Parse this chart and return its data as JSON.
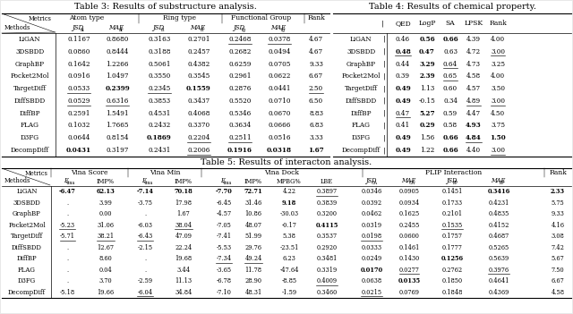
{
  "table3_title": "Table 3: Results of substructure analysis.",
  "table4_title": "Table 4: Results of chemical property.",
  "table5_title": "Table 5: Results of interacton analysis.",
  "table3_rows": [
    [
      "LiGAN",
      "0.1167",
      "0.8680",
      "0.3163",
      "0.2701",
      "0.2468",
      "0.0378",
      "4.67"
    ],
    [
      "3DSBDD",
      "0.0860",
      "0.8444",
      "0.3188",
      "0.2457",
      "0.2682",
      "0.0494",
      "4.67"
    ],
    [
      "GraphBP",
      "0.1642",
      "1.2266",
      "0.5061",
      "0.4382",
      "0.6259",
      "0.0705",
      "9.33"
    ],
    [
      "Pocket2Mol",
      "0.0916",
      "1.0497",
      "0.3550",
      "0.3545",
      "0.2961",
      "0.0622",
      "6.67"
    ],
    [
      "TargetDiff",
      "0.0533",
      "0.2399",
      "0.2345",
      "0.1559",
      "0.2876",
      "0.0441",
      "2.50"
    ],
    [
      "DiffSBDD",
      "0.0529",
      "0.6316",
      "0.3853",
      "0.3437",
      "0.5520",
      "0.0710",
      "6.50"
    ],
    [
      "DiffBP",
      "0.2591",
      "1.5491",
      "0.4531",
      "0.4068",
      "0.5346",
      "0.0670",
      "8.83"
    ],
    [
      "FLAG",
      "0.1032",
      "1.7665",
      "0.2432",
      "0.3370",
      "0.3634",
      "0.0666",
      "6.83"
    ],
    [
      "D3FG",
      "0.0644",
      "0.8154",
      "0.1869",
      "0.2204",
      "0.2511",
      "0.0516",
      "3.33"
    ],
    [
      "DecompDiff",
      "0.0431",
      "0.3197",
      "0.2431",
      "0.2006",
      "0.1916",
      "0.0318",
      "1.67"
    ]
  ],
  "table3_bold": [
    [
      false,
      false,
      false,
      false,
      false,
      false,
      false,
      false
    ],
    [
      false,
      false,
      false,
      false,
      false,
      false,
      false,
      false
    ],
    [
      false,
      false,
      false,
      false,
      false,
      false,
      false,
      false
    ],
    [
      false,
      false,
      false,
      false,
      false,
      false,
      false,
      false
    ],
    [
      false,
      false,
      true,
      false,
      true,
      false,
      false,
      false
    ],
    [
      false,
      false,
      false,
      false,
      false,
      false,
      false,
      false
    ],
    [
      false,
      false,
      false,
      false,
      false,
      false,
      false,
      false
    ],
    [
      false,
      false,
      false,
      false,
      false,
      false,
      false,
      false
    ],
    [
      false,
      false,
      false,
      true,
      false,
      false,
      false,
      false
    ],
    [
      false,
      true,
      false,
      false,
      false,
      true,
      true,
      true
    ]
  ],
  "table3_underline": [
    [
      false,
      false,
      false,
      false,
      false,
      true,
      true,
      false
    ],
    [
      false,
      false,
      false,
      false,
      false,
      false,
      false,
      false
    ],
    [
      false,
      false,
      false,
      false,
      false,
      false,
      false,
      false
    ],
    [
      false,
      false,
      false,
      false,
      false,
      false,
      false,
      false
    ],
    [
      false,
      true,
      false,
      true,
      false,
      false,
      false,
      true
    ],
    [
      false,
      true,
      true,
      false,
      false,
      false,
      false,
      false
    ],
    [
      false,
      false,
      false,
      false,
      false,
      false,
      false,
      false
    ],
    [
      false,
      false,
      false,
      false,
      false,
      false,
      false,
      false
    ],
    [
      false,
      false,
      false,
      false,
      true,
      true,
      false,
      false
    ],
    [
      false,
      false,
      false,
      false,
      true,
      false,
      false,
      false
    ]
  ],
  "table4_rows": [
    [
      "LiGAN",
      "0.46",
      "0.56",
      "0.66",
      "4.39",
      "4.00"
    ],
    [
      "3DSBDD",
      "0.48",
      "0.47",
      "0.63",
      "4.72",
      "3.00"
    ],
    [
      "GraphBP",
      "0.44",
      "3.29",
      "0.64",
      "4.73",
      "3.25"
    ],
    [
      "Pocket2Mol",
      "0.39",
      "2.39",
      "0.65",
      "4.58",
      "4.00"
    ],
    [
      "TargetDiff",
      "0.49",
      "1.13",
      "0.60",
      "4.57",
      "3.50"
    ],
    [
      "DiffSBDD",
      "0.49",
      "-0.15",
      "0.34",
      "4.89",
      "3.00"
    ],
    [
      "DiffBP",
      "0.47",
      "5.27",
      "0.59",
      "4.47",
      "4.50"
    ],
    [
      "FLAG",
      "0.41",
      "0.29",
      "0.58",
      "4.93",
      "3.75"
    ],
    [
      "D3FG",
      "0.49",
      "1.56",
      "0.66",
      "4.84",
      "1.50"
    ],
    [
      "DecompDiff",
      "0.49",
      "1.22",
      "0.66",
      "4.40",
      "3.00"
    ]
  ],
  "table4_bold": [
    [
      false,
      false,
      true,
      true,
      false,
      false
    ],
    [
      false,
      true,
      true,
      false,
      false,
      false
    ],
    [
      false,
      false,
      true,
      false,
      false,
      false
    ],
    [
      false,
      false,
      true,
      false,
      false,
      false
    ],
    [
      false,
      true,
      false,
      false,
      false,
      false
    ],
    [
      false,
      true,
      false,
      false,
      false,
      false
    ],
    [
      false,
      false,
      true,
      false,
      false,
      false
    ],
    [
      false,
      false,
      true,
      false,
      true,
      false
    ],
    [
      false,
      true,
      false,
      true,
      true,
      true
    ],
    [
      false,
      true,
      false,
      true,
      false,
      false
    ]
  ],
  "table4_underline": [
    [
      false,
      false,
      false,
      false,
      false,
      false
    ],
    [
      false,
      true,
      false,
      false,
      false,
      true
    ],
    [
      false,
      false,
      false,
      true,
      false,
      false
    ],
    [
      false,
      false,
      false,
      true,
      false,
      false
    ],
    [
      false,
      false,
      false,
      false,
      false,
      false
    ],
    [
      false,
      false,
      false,
      false,
      true,
      true
    ],
    [
      false,
      true,
      false,
      false,
      false,
      false
    ],
    [
      false,
      false,
      false,
      false,
      false,
      false
    ],
    [
      false,
      false,
      false,
      false,
      true,
      false
    ],
    [
      false,
      false,
      false,
      false,
      false,
      true
    ]
  ],
  "table5_rows": [
    [
      "LiGAN",
      "-6.47",
      "62.13",
      "-7.14",
      "70.18",
      "-7.70",
      "72.71",
      "4.22",
      "0.3897",
      "0.0346",
      "0.0905",
      "0.1451",
      "0.3416",
      "2.33"
    ],
    [
      "3DSBDD",
      ".",
      "3.99",
      "-3.75",
      "17.98",
      "-6.45",
      "31.46",
      "9.18",
      "0.3839",
      "0.0392",
      "0.0934",
      "0.1733",
      "0.4231",
      "5.75"
    ],
    [
      "GraphBP",
      ".",
      "0.00",
      ".",
      "1.67",
      "-4.57",
      "10.86",
      "-30.03",
      "0.3200",
      "0.0462",
      "0.1625",
      "0.2101",
      "0.4835",
      "9.33"
    ],
    [
      "Pocket2Mol",
      "-5.23",
      "31.06",
      "-6.03",
      "38.04",
      "-7.05",
      "48.07",
      "-0.17",
      "0.4115",
      "0.0319",
      "0.2455",
      "0.1535",
      "0.4152",
      "4.16"
    ],
    [
      "TargetDiff",
      "-5.71",
      "38.21",
      "-6.43",
      "47.09",
      "-7.41",
      "51.99",
      "5.38",
      "0.3537",
      "0.0198",
      "0.0600",
      "0.1757",
      "0.4687",
      "3.08"
    ],
    [
      "DiffSBDD",
      ".",
      "12.67",
      "-2.15",
      "22.24",
      "-5.53",
      "29.76",
      "-23.51",
      "0.2920",
      "0.0333",
      "0.1461",
      "0.1777",
      "0.5265",
      "7.42"
    ],
    [
      "DiffBP",
      ".",
      "8.60",
      ".",
      "19.68",
      "-7.34",
      "49.24",
      "6.23",
      "0.3481",
      "0.0249",
      "0.1430",
      "0.1256",
      "0.5639",
      "5.67"
    ],
    [
      "FLAG",
      ".",
      "0.04",
      ".",
      "3.44",
      "-3.65",
      "11.78",
      "-47.64",
      "0.3319",
      "0.0170",
      "0.0277",
      "0.2762",
      "0.3976",
      "7.50"
    ],
    [
      "D3FG",
      ".",
      "3.70",
      "-2.59",
      "11.13",
      "-6.78",
      "28.90",
      "-8.85",
      "0.4009",
      "0.0638",
      "0.0135",
      "0.1850",
      "0.4641",
      "6.67"
    ],
    [
      "DecompDiff",
      "-5.18",
      "19.66",
      "-6.04",
      "34.84",
      "-7.10",
      "48.31",
      "-1.59",
      "0.3460",
      "0.0215",
      "0.0769",
      "0.1848",
      "0.4369",
      "4.58"
    ]
  ],
  "table5_bold": [
    [
      false,
      true,
      true,
      true,
      true,
      true,
      true,
      false,
      false,
      false,
      false,
      false,
      true,
      true
    ],
    [
      false,
      false,
      false,
      false,
      false,
      false,
      false,
      true,
      false,
      false,
      false,
      false,
      false,
      false
    ],
    [
      false,
      false,
      false,
      false,
      false,
      false,
      false,
      false,
      false,
      false,
      false,
      false,
      false,
      false
    ],
    [
      false,
      false,
      false,
      false,
      false,
      false,
      false,
      false,
      true,
      false,
      false,
      false,
      false,
      false
    ],
    [
      false,
      false,
      false,
      false,
      false,
      false,
      false,
      false,
      false,
      false,
      false,
      false,
      false,
      false
    ],
    [
      false,
      false,
      false,
      false,
      false,
      false,
      false,
      false,
      false,
      false,
      false,
      false,
      false,
      false
    ],
    [
      false,
      false,
      false,
      false,
      false,
      false,
      false,
      false,
      false,
      false,
      false,
      true,
      false,
      false
    ],
    [
      false,
      false,
      false,
      false,
      false,
      false,
      false,
      false,
      false,
      true,
      false,
      false,
      false,
      false
    ],
    [
      false,
      false,
      false,
      false,
      false,
      false,
      false,
      false,
      false,
      false,
      true,
      false,
      false,
      false
    ],
    [
      false,
      false,
      false,
      false,
      false,
      false,
      false,
      false,
      false,
      false,
      false,
      false,
      false,
      false
    ]
  ],
  "table5_underline": [
    [
      false,
      false,
      false,
      false,
      false,
      false,
      false,
      false,
      true,
      false,
      false,
      false,
      false,
      false
    ],
    [
      false,
      false,
      false,
      false,
      false,
      false,
      false,
      false,
      false,
      false,
      false,
      false,
      false,
      false
    ],
    [
      false,
      false,
      false,
      false,
      false,
      false,
      false,
      false,
      false,
      false,
      false,
      false,
      false,
      false
    ],
    [
      false,
      true,
      false,
      false,
      true,
      false,
      false,
      false,
      false,
      false,
      false,
      true,
      false,
      false
    ],
    [
      false,
      true,
      true,
      true,
      false,
      false,
      false,
      false,
      false,
      true,
      false,
      false,
      false,
      false
    ],
    [
      false,
      false,
      false,
      false,
      false,
      false,
      false,
      false,
      false,
      false,
      false,
      false,
      false,
      false
    ],
    [
      false,
      false,
      false,
      false,
      false,
      true,
      true,
      false,
      false,
      false,
      false,
      false,
      false,
      false
    ],
    [
      false,
      false,
      false,
      false,
      false,
      false,
      false,
      false,
      false,
      false,
      true,
      false,
      true,
      false
    ],
    [
      false,
      false,
      false,
      false,
      false,
      false,
      false,
      false,
      true,
      false,
      false,
      false,
      false,
      false
    ],
    [
      false,
      false,
      false,
      true,
      false,
      false,
      false,
      false,
      false,
      true,
      false,
      false,
      false,
      false
    ]
  ]
}
